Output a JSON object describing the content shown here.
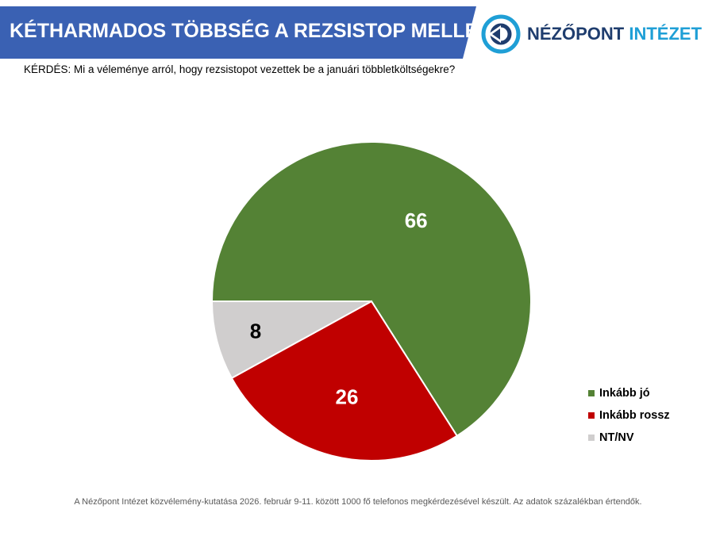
{
  "header": {
    "title": "KÉTHARMADOS TÖBBSÉG A REZSISTOP MELLETT",
    "banner_color": "#3a61b3"
  },
  "logo": {
    "icon": "nezopont-logo-icon",
    "text_dark": "NÉZŐPONT",
    "text_accent": "INTÉZET",
    "dark_color": "#1f3d6e",
    "accent_color": "#1f9fd6"
  },
  "question": "KÉRDÉS: Mi a véleménye arról, hogy rezsistopot vezettek be a januári többletköltségekre?",
  "chart_data": {
    "type": "pie",
    "title": "",
    "series": [
      {
        "name": "Inkább jó",
        "value": 66,
        "label": "66",
        "color": "#548235"
      },
      {
        "name": "Inkább rossz",
        "value": 26,
        "label": "26",
        "color": "#c00000"
      },
      {
        "name": "NT/NV",
        "value": 8,
        "label": "8",
        "color": "#d0cece"
      }
    ],
    "legend_position": "bottom-right"
  },
  "footnote": "A Nézőpont Intézet közvélemény-kutatása 2026. február 9-11. között 1000 fő telefonos megkérdezésével készült. Az adatok százalékban értendők."
}
